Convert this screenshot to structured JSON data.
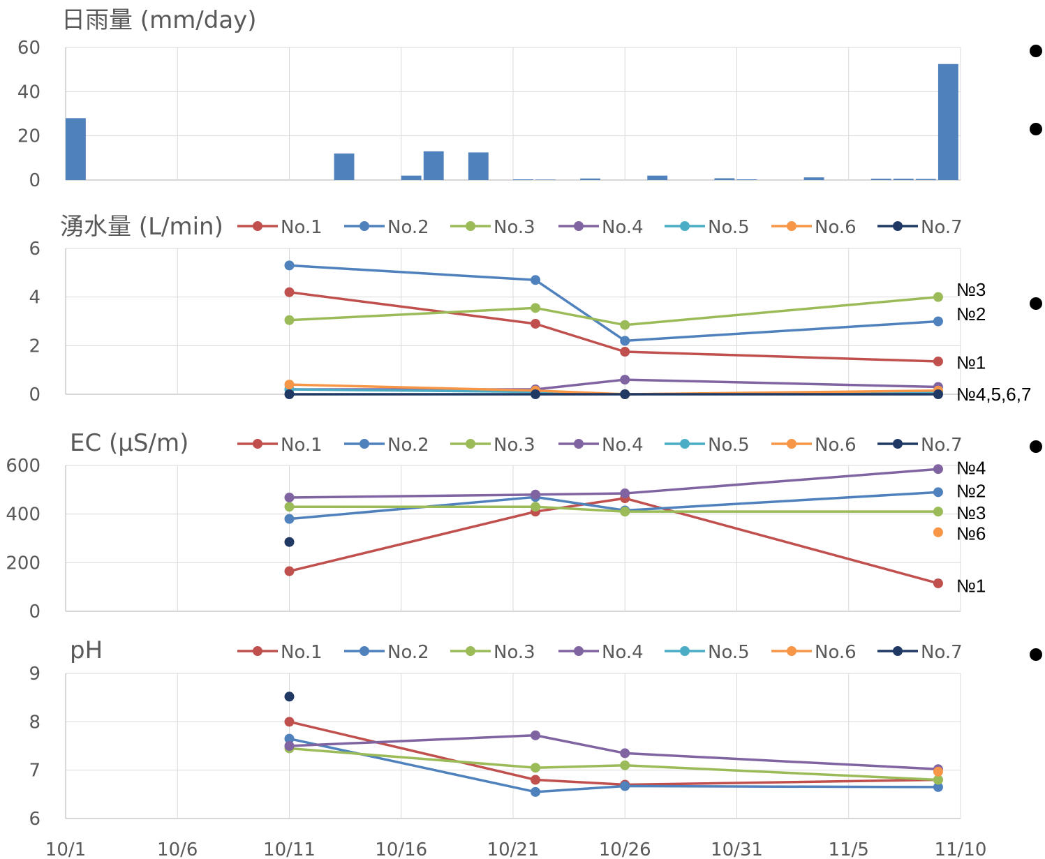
{
  "chart_data": [
    {
      "type": "bar",
      "title": "日雨量 (mm/day)",
      "ylim": [
        0,
        60
      ],
      "yticks": [
        "0",
        "20",
        "40",
        "60"
      ],
      "series": [
        {
          "color": "#4f81bd",
          "points": [
            {
              "x": "10/1",
              "y": 28
            },
            {
              "x": "10/13",
              "y": 12
            },
            {
              "x": "10/16",
              "y": 2
            },
            {
              "x": "10/17",
              "y": 13
            },
            {
              "x": "10/19",
              "y": 12.5
            },
            {
              "x": "10/21",
              "y": 0.3
            },
            {
              "x": "10/22",
              "y": 0.2
            },
            {
              "x": "10/24",
              "y": 0.7
            },
            {
              "x": "10/27",
              "y": 2
            },
            {
              "x": "10/30",
              "y": 0.8
            },
            {
              "x": "10/31",
              "y": 0.3
            },
            {
              "x": "11/3",
              "y": 1.2
            },
            {
              "x": "11/6",
              "y": 0.6
            },
            {
              "x": "11/7",
              "y": 0.6
            },
            {
              "x": "11/8",
              "y": 0.5
            },
            {
              "x": "11/9",
              "y": 52.5
            }
          ]
        }
      ]
    },
    {
      "type": "line",
      "title": "湧水量 (L/min)",
      "ylim": [
        0,
        6
      ],
      "yticks": [
        "0",
        "2",
        "4",
        "6"
      ],
      "grid": true,
      "legend_position": "top",
      "x": [
        "10/11",
        "10/22",
        "10/26",
        "11/9"
      ],
      "series": [
        {
          "name": "No.1",
          "color": "#c0504d",
          "values": [
            4.2,
            2.9,
            1.75,
            1.35
          ]
        },
        {
          "name": "No.2",
          "color": "#4f81bd",
          "values": [
            5.3,
            4.7,
            2.2,
            3.0
          ]
        },
        {
          "name": "No.3",
          "color": "#9bbb59",
          "values": [
            3.05,
            3.55,
            2.85,
            4.0
          ]
        },
        {
          "name": "No.4",
          "color": "#8064a2",
          "values": [
            0.2,
            0.2,
            0.6,
            0.3
          ]
        },
        {
          "name": "No.5",
          "color": "#4bacc6",
          "values": [
            0.2,
            0.1,
            0.0,
            0.1
          ]
        },
        {
          "name": "No.6",
          "color": "#f79646",
          "values": [
            0.4,
            0.15,
            0.0,
            0.15
          ]
        },
        {
          "name": "No.7",
          "color": "#1f3864",
          "values": [
            0.0,
            0.0,
            0.0,
            0.0
          ]
        }
      ],
      "annotations": [
        {
          "text": "№3",
          "y": 4.3
        },
        {
          "text": "№2",
          "y": 3.3
        },
        {
          "text": "№1",
          "y": 1.3
        },
        {
          "text": "№4,5,6,7",
          "y": 0.0
        }
      ]
    },
    {
      "type": "line",
      "title": "EC (μS/m)",
      "ylim": [
        0,
        600
      ],
      "yticks": [
        "0",
        "200",
        "400",
        "600"
      ],
      "grid": true,
      "legend_position": "top",
      "x": [
        "10/11",
        "10/22",
        "10/26",
        "11/9"
      ],
      "series": [
        {
          "name": "No.1",
          "color": "#c0504d",
          "values": [
            165,
            410,
            465,
            115
          ]
        },
        {
          "name": "No.2",
          "color": "#4f81bd",
          "values": [
            380,
            470,
            415,
            490
          ]
        },
        {
          "name": "No.3",
          "color": "#9bbb59",
          "values": [
            430,
            430,
            410,
            410
          ]
        },
        {
          "name": "No.4",
          "color": "#8064a2",
          "values": [
            468,
            480,
            485,
            585
          ]
        },
        {
          "name": "No.5",
          "color": "#4bacc6",
          "values": [
            null,
            null,
            null,
            null
          ]
        },
        {
          "name": "No.6",
          "color": "#f79646",
          "values": [
            null,
            null,
            null,
            325
          ]
        },
        {
          "name": "No.7",
          "color": "#1f3864",
          "values": [
            285,
            null,
            null,
            null
          ]
        }
      ],
      "annotations": [
        {
          "text": "№4",
          "y": 590
        },
        {
          "text": "№2",
          "y": 495
        },
        {
          "text": "№3",
          "y": 405
        },
        {
          "text": "№6",
          "y": 320
        },
        {
          "text": "№1",
          "y": 105
        }
      ]
    },
    {
      "type": "line",
      "title": "pH",
      "ylim": [
        6,
        9
      ],
      "yticks": [
        "6",
        "7",
        "8",
        "9"
      ],
      "grid": true,
      "legend_position": "top",
      "x": [
        "10/11",
        "10/22",
        "10/26",
        "11/9"
      ],
      "series": [
        {
          "name": "No.1",
          "color": "#c0504d",
          "values": [
            8.0,
            6.8,
            6.7,
            6.8
          ]
        },
        {
          "name": "No.2",
          "color": "#4f81bd",
          "values": [
            7.65,
            6.55,
            6.67,
            6.65
          ]
        },
        {
          "name": "No.3",
          "color": "#9bbb59",
          "values": [
            7.45,
            7.05,
            7.1,
            6.8
          ]
        },
        {
          "name": "No.4",
          "color": "#8064a2",
          "values": [
            7.5,
            7.72,
            7.35,
            7.02
          ]
        },
        {
          "name": "No.5",
          "color": "#4bacc6",
          "values": [
            null,
            null,
            null,
            null
          ]
        },
        {
          "name": "No.6",
          "color": "#f79646",
          "values": [
            null,
            null,
            null,
            6.97
          ]
        },
        {
          "name": "No.7",
          "color": "#1f3864",
          "values": [
            8.52,
            null,
            null,
            null
          ]
        }
      ]
    }
  ],
  "x_axis": {
    "tick_labels": [
      "10/1",
      "10/6",
      "10/11",
      "10/16",
      "10/21",
      "10/26",
      "10/31",
      "11/5",
      "11/10"
    ]
  }
}
